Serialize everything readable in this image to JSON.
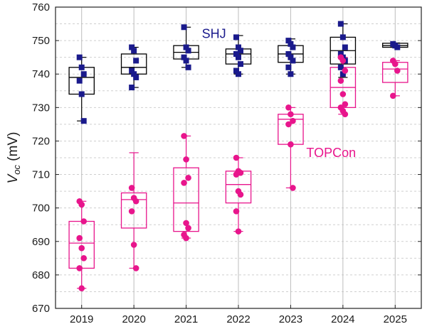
{
  "chart_data": {
    "type": "box",
    "ylabel": {
      "main": "V",
      "sub": "oc",
      "unit": " (mV)"
    },
    "ylim": [
      670,
      760
    ],
    "yticks": [
      670,
      680,
      690,
      700,
      710,
      720,
      730,
      740,
      750,
      760
    ],
    "grid": "dashed",
    "categories": [
      "2019",
      "2020",
      "2021",
      "2022",
      "2023",
      "2024",
      "2025"
    ],
    "series": [
      {
        "name": "SHJ",
        "color": "#000000",
        "marker_color": "#1a1a8c",
        "marker": "square",
        "boxes": [
          {
            "category": "2019",
            "q1": 734,
            "median": 739,
            "q3": 742,
            "whisker_low": 726,
            "whisker_high": 745,
            "points": [
              745,
              742,
              740,
              738,
              734,
              726
            ]
          },
          {
            "category": "2020",
            "q1": 740,
            "median": 742,
            "q3": 746,
            "whisker_low": 736,
            "whisker_high": 748,
            "points": [
              748,
              747,
              744,
              741,
              740,
              739,
              736
            ]
          },
          {
            "category": "2021",
            "q1": 744.5,
            "median": 746.5,
            "q3": 748.5,
            "whisker_low": 742,
            "whisker_high": 754,
            "points": [
              754,
              748,
              747,
              745,
              744,
              742
            ]
          },
          {
            "category": "2022",
            "q1": 743,
            "median": 746,
            "q3": 747.5,
            "whisker_low": 740,
            "whisker_high": 751.5,
            "points": [
              751,
              748,
              747,
              746,
              745,
              743,
              741,
              740
            ]
          },
          {
            "category": "2023",
            "q1": 743.5,
            "median": 746,
            "q3": 748.5,
            "whisker_low": 740,
            "whisker_high": 750.5,
            "points": [
              750,
              749,
              748,
              746,
              745,
              744,
              742,
              740
            ]
          },
          {
            "category": "2024",
            "q1": 743,
            "median": 747,
            "q3": 751,
            "whisker_low": 739,
            "whisker_high": 755,
            "points": [
              755,
              751,
              748,
              746,
              745,
              744,
              742,
              740
            ]
          },
          {
            "category": "2025",
            "q1": 748,
            "median": 748.5,
            "q3": 749.2,
            "whisker_low": 748,
            "whisker_high": 749.3,
            "points": [
              749,
              748.5,
              748
            ]
          }
        ]
      },
      {
        "name": "TOPCon",
        "color": "#e8158c",
        "marker_color": "#e8158c",
        "marker": "circle",
        "boxes": [
          {
            "category": "2019",
            "q1": 682,
            "median": 689.5,
            "q3": 696,
            "whisker_low": 676,
            "whisker_high": 702,
            "points": [
              702,
              701,
              696,
              691,
              688,
              685,
              682,
              676
            ]
          },
          {
            "category": "2020",
            "q1": 694,
            "median": 702.5,
            "q3": 704.5,
            "whisker_low": 682,
            "whisker_high": 716.5,
            "points": [
              706,
              703,
              702,
              699,
              689,
              682
            ]
          },
          {
            "category": "2021",
            "q1": 693,
            "median": 701.5,
            "q3": 712,
            "whisker_low": 691,
            "whisker_high": 721.5,
            "points": [
              721.5,
              714.5,
              709,
              707.5,
              695.5,
              694,
              692,
              691
            ]
          },
          {
            "category": "2022",
            "q1": 701.5,
            "median": 707,
            "q3": 711,
            "whisker_low": 693,
            "whisker_high": 715,
            "points": [
              715,
              711,
              710.5,
              710,
              705,
              704,
              699,
              693
            ]
          },
          {
            "category": "2023",
            "q1": 719,
            "median": 726.5,
            "q3": 728,
            "whisker_low": 706,
            "whisker_high": 730,
            "points": [
              730,
              728,
              726,
              725,
              719,
              706
            ]
          },
          {
            "category": "2024",
            "q1": 730,
            "median": 736,
            "q3": 742,
            "whisker_low": 728,
            "whisker_high": 745,
            "points": [
              745,
              744,
              741,
              738,
              734,
              731,
              730,
              729,
              728
            ]
          },
          {
            "category": "2025",
            "q1": 737.5,
            "median": 741.5,
            "q3": 743.5,
            "whisker_low": 733.5,
            "whisker_high": 744,
            "points": [
              744,
              743,
              741,
              733.5
            ]
          }
        ]
      }
    ],
    "annotations": [
      {
        "text": "SHJ",
        "x": "2021",
        "y": 752,
        "color": "#1a1a8c"
      },
      {
        "text": "TOPCon",
        "x": "2023",
        "y": 716.5,
        "color": "#e8158c"
      }
    ]
  }
}
